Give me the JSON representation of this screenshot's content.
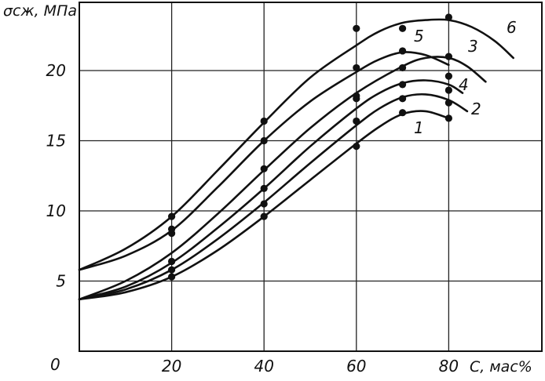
{
  "chart_data": {
    "type": "line",
    "title": "",
    "ylabel": "σсж, МПа",
    "xlabel": "С, мас%",
    "xlim": [
      0,
      100
    ],
    "ylim": [
      0,
      24
    ],
    "grid": true,
    "x_ticks": [
      20,
      40,
      60,
      80
    ],
    "x_tick_labels": [
      "20",
      "40",
      "60",
      "80"
    ],
    "y_ticks": [
      5,
      10,
      15,
      20
    ],
    "y_tick_labels": [
      "5",
      "10",
      "15",
      "20"
    ],
    "origin_label": "0",
    "series": [
      {
        "name": "1",
        "points": [
          [
            20,
            5.3
          ],
          [
            40,
            9.6
          ],
          [
            60,
            14.6
          ],
          [
            70,
            17.0
          ],
          [
            80,
            16.6
          ]
        ],
        "curve": [
          [
            0,
            3.7
          ],
          [
            10,
            4.2
          ],
          [
            20,
            5.3
          ],
          [
            30,
            7.2
          ],
          [
            40,
            9.6
          ],
          [
            50,
            12.2
          ],
          [
            60,
            14.8
          ],
          [
            65,
            16.0
          ],
          [
            70,
            16.9
          ],
          [
            75,
            17.1
          ],
          [
            80,
            16.6
          ]
        ]
      },
      {
        "name": "2",
        "points": [
          [
            20,
            5.8
          ],
          [
            40,
            10.5
          ],
          [
            60,
            16.4
          ],
          [
            70,
            18.0
          ],
          [
            80,
            17.7
          ]
        ],
        "curve": [
          [
            0,
            3.7
          ],
          [
            10,
            4.4
          ],
          [
            20,
            5.8
          ],
          [
            30,
            8.0
          ],
          [
            40,
            10.6
          ],
          [
            50,
            13.4
          ],
          [
            60,
            16.1
          ],
          [
            65,
            17.3
          ],
          [
            70,
            18.1
          ],
          [
            75,
            18.3
          ],
          [
            80,
            17.9
          ],
          [
            84,
            17.1
          ]
        ]
      },
      {
        "name": "4",
        "points": [
          [
            20,
            6.4
          ],
          [
            40,
            11.6
          ],
          [
            60,
            18.2
          ],
          [
            70,
            19.0
          ],
          [
            80,
            18.6
          ]
        ],
        "curve": [
          [
            0,
            3.7
          ],
          [
            10,
            4.6
          ],
          [
            20,
            6.3
          ],
          [
            30,
            8.8
          ],
          [
            40,
            11.6
          ],
          [
            50,
            14.6
          ],
          [
            60,
            17.3
          ],
          [
            65,
            18.4
          ],
          [
            70,
            19.1
          ],
          [
            75,
            19.3
          ],
          [
            80,
            19.0
          ],
          [
            83,
            18.4
          ]
        ]
      },
      {
        "name": "3",
        "points": [
          [
            20,
            8.4
          ],
          [
            40,
            13.0
          ],
          [
            60,
            18.0
          ],
          [
            70,
            20.2
          ],
          [
            80,
            21.0
          ],
          [
            80,
            19.6
          ]
        ],
        "curve": [
          [
            0,
            3.7
          ],
          [
            10,
            5.0
          ],
          [
            20,
            7.0
          ],
          [
            30,
            9.8
          ],
          [
            40,
            12.9
          ],
          [
            50,
            15.9
          ],
          [
            60,
            18.4
          ],
          [
            70,
            20.3
          ],
          [
            75,
            20.9
          ],
          [
            80,
            20.9
          ],
          [
            84,
            20.3
          ],
          [
            88,
            19.2
          ]
        ]
      },
      {
        "name": "5",
        "points": [
          [
            20,
            8.7
          ],
          [
            40,
            15.0
          ],
          [
            60,
            20.2
          ],
          [
            70,
            21.4
          ]
        ],
        "curve": [
          [
            0,
            5.8
          ],
          [
            10,
            6.8
          ],
          [
            20,
            8.6
          ],
          [
            30,
            11.7
          ],
          [
            40,
            15.0
          ],
          [
            50,
            17.8
          ],
          [
            60,
            19.9
          ],
          [
            65,
            20.8
          ],
          [
            70,
            21.3
          ],
          [
            75,
            21.1
          ],
          [
            80,
            20.4
          ]
        ]
      },
      {
        "name": "6",
        "points": [
          [
            20,
            9.6
          ],
          [
            40,
            16.4
          ],
          [
            60,
            23.0
          ],
          [
            70,
            23.0
          ],
          [
            80,
            23.8
          ]
        ],
        "curve": [
          [
            0,
            5.8
          ],
          [
            10,
            7.3
          ],
          [
            20,
            9.6
          ],
          [
            30,
            12.9
          ],
          [
            40,
            16.3
          ],
          [
            50,
            19.5
          ],
          [
            60,
            21.8
          ],
          [
            65,
            22.8
          ],
          [
            70,
            23.4
          ],
          [
            75,
            23.6
          ],
          [
            80,
            23.6
          ],
          [
            85,
            23.1
          ],
          [
            90,
            22.1
          ],
          [
            94,
            20.9
          ]
        ]
      }
    ]
  }
}
